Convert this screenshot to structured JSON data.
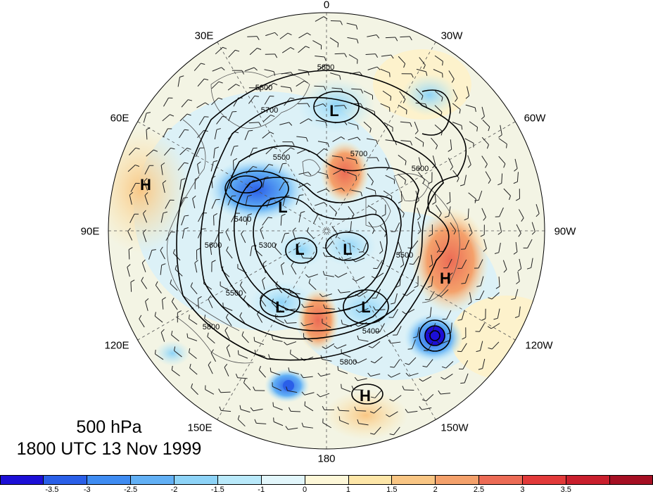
{
  "level_label": "500 hPa",
  "time_label": "1800 UTC 13 Nov 1999",
  "longitude_labels": {
    "top": "0",
    "top_left": "30E",
    "top_right": "30W",
    "upper_left": "60E",
    "upper_right": "60W",
    "left": "90E",
    "right": "90W",
    "lower_left": "120E",
    "lower_right": "120W",
    "bottom_left": "150E",
    "bottom_right": "150W",
    "bottom": "180"
  },
  "contour_labels": [
    "5800",
    "5800",
    "5700",
    "5500",
    "5400",
    "5300",
    "5500",
    "5600",
    "5700",
    "5600",
    "5500",
    "5400",
    "5800",
    "5800"
  ],
  "pressure_centers": [
    {
      "kind": "L",
      "color": "#000000"
    },
    {
      "kind": "L",
      "color": "#000000"
    },
    {
      "kind": "L",
      "color": "#000000"
    },
    {
      "kind": "L",
      "color": "#000000"
    },
    {
      "kind": "L",
      "color": "#000000"
    },
    {
      "kind": "L",
      "color": "#000000"
    },
    {
      "kind": "H",
      "color": "#000000"
    },
    {
      "kind": "H",
      "color": "#000000"
    },
    {
      "kind": "H",
      "color": "#000000"
    }
  ],
  "colorbar": {
    "colors": [
      "#1c0fd6",
      "#2a5fe8",
      "#3f8cf2",
      "#62b0f5",
      "#8dd3f7",
      "#b9e9fa",
      "#e2f6fb",
      "#fdf7d8",
      "#fde6a8",
      "#f9c684",
      "#f4a16b",
      "#ec6b55",
      "#e23a3a",
      "#c91f2d",
      "#a50f23"
    ],
    "tick_labels": [
      "-3.5",
      "-3",
      "-2.5",
      "-2",
      "-1.5",
      "-1",
      "0",
      "1",
      "1.5",
      "2",
      "2.5",
      "3",
      "3.5"
    ]
  },
  "colors": {
    "ocean_base": "#e9f6f8",
    "land_outline": "#555555",
    "contour": "#000000"
  }
}
